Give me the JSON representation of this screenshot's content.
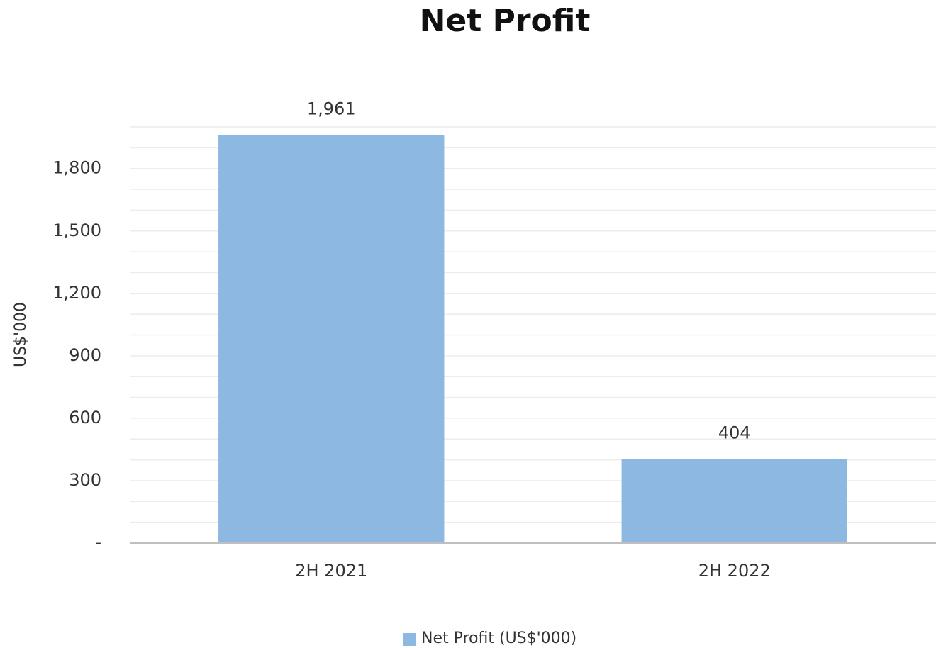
{
  "chart_data": {
    "type": "bar",
    "title": "Net Profit",
    "y_label": "US$'000",
    "categories": [
      "2H 2021",
      "2H 2022"
    ],
    "values": [
      1961,
      404
    ],
    "value_labels": [
      "1,961",
      "404"
    ],
    "series_name": "Net Profit (US$'000)",
    "color": "#8db8e2",
    "ylim": [
      0,
      2000
    ],
    "yticks": [
      {
        "value": 0,
        "label": "-"
      },
      {
        "value": 300,
        "label": "300"
      },
      {
        "value": 600,
        "label": "600"
      },
      {
        "value": 900,
        "label": "900"
      },
      {
        "value": 1200,
        "label": "1,200"
      },
      {
        "value": 1500,
        "label": "1,500"
      },
      {
        "value": 1800,
        "label": "1,800"
      }
    ],
    "yticks_minor": [
      100,
      200,
      300,
      400,
      500,
      600,
      700,
      800,
      900,
      1000,
      1100,
      1200,
      1300,
      1400,
      1500,
      1600,
      1700,
      1800,
      1900,
      2000
    ],
    "grid": true,
    "legend": "bottom"
  }
}
